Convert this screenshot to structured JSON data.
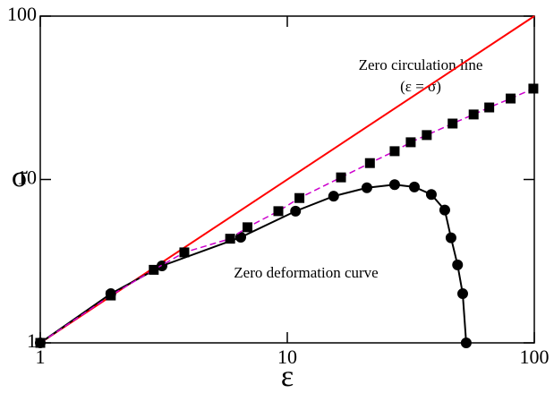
{
  "chart_data": {
    "type": "line",
    "xlabel": "ε",
    "ylabel": "σ",
    "xlog": true,
    "ylog": true,
    "xlim": [
      1,
      100
    ],
    "ylim": [
      1,
      100
    ],
    "xticks": [
      1,
      10,
      100
    ],
    "yticks": [
      1,
      10,
      100
    ],
    "annotations": [
      {
        "text": "Zero circulation line",
        "color": "#ff0000"
      },
      {
        "text": "(ε = σ)",
        "color": "#ff0000"
      },
      {
        "text": "Zero deformation curve",
        "color": "#000000"
      }
    ],
    "series": [
      {
        "color": "#ff0000",
        "line": "solid",
        "marker": "none",
        "x": [
          1,
          100
        ],
        "values": [
          1,
          100
        ]
      },
      {
        "color": "#000000",
        "line": "solid",
        "marker": "circle",
        "x": [
          1,
          1.93,
          3.11,
          6.48,
          10.8,
          15.4,
          21.0,
          27.2,
          32.7,
          38.3,
          43.4,
          46.0,
          48.9,
          51.3,
          53.0
        ],
        "values": [
          1,
          2.0,
          2.96,
          4.43,
          6.4,
          7.9,
          8.9,
          9.3,
          9.0,
          8.1,
          6.5,
          4.4,
          3.0,
          2.0,
          1.0
        ]
      },
      {
        "color": "#cc00cc",
        "line": "dashed",
        "marker": "square",
        "marker_color": "#000000",
        "x": [
          1,
          1.93,
          2.88,
          3.83,
          5.87,
          6.9,
          9.2,
          11.2,
          16.5,
          21.6,
          27.2,
          31.6,
          36.7,
          46.7,
          56.8,
          65.7,
          80.2,
          99.1
        ],
        "values": [
          1,
          1.95,
          2.8,
          3.58,
          4.34,
          5.1,
          6.4,
          7.7,
          10.3,
          12.6,
          14.9,
          16.9,
          18.7,
          22,
          25,
          27.6,
          31.3,
          36
        ]
      }
    ]
  }
}
